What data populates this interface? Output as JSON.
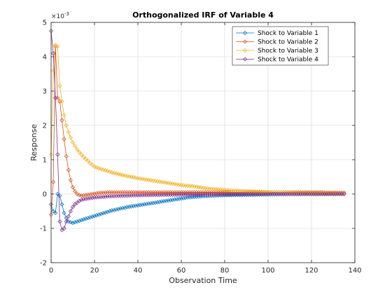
{
  "chart_data": {
    "type": "line",
    "title": "Orthogonalized IRF of Variable 4",
    "xlabel": "Observation Time",
    "ylabel": "Response",
    "exponent_label": "×10",
    "exponent_power": "-3",
    "xlim": [
      0,
      140
    ],
    "ylim": [
      -2,
      5
    ],
    "xticks": [
      0,
      20,
      40,
      60,
      80,
      100,
      120,
      140
    ],
    "yticks": [
      -2,
      -1,
      0,
      1,
      2,
      3,
      4,
      5
    ],
    "grid": true,
    "legend_position": "top-right",
    "x_start": 0,
    "x_end": 135,
    "series": [
      {
        "name": "Shock to Variable 1",
        "color": "#0072BD",
        "values": [
          -0.3,
          -0.5,
          -0.55,
          0.0,
          -0.05,
          -0.3,
          -0.55,
          -0.7,
          -0.8,
          -0.82,
          -0.84,
          -0.82,
          -0.8,
          -0.78,
          -0.76,
          -0.74,
          -0.72,
          -0.7,
          -0.68,
          -0.66,
          -0.64,
          -0.62,
          -0.6,
          -0.58,
          -0.56,
          -0.54,
          -0.52,
          -0.5,
          -0.48,
          -0.47,
          -0.45,
          -0.44,
          -0.42,
          -0.41,
          -0.4,
          -0.38,
          -0.37,
          -0.36,
          -0.35,
          -0.34,
          -0.33,
          -0.32,
          -0.31,
          -0.3,
          -0.29,
          -0.28,
          -0.27,
          -0.26,
          -0.25,
          -0.24,
          -0.23,
          -0.22,
          -0.21,
          -0.2,
          -0.19,
          -0.18,
          -0.17,
          -0.16,
          -0.15,
          -0.14,
          -0.13,
          -0.12,
          -0.11,
          -0.1,
          -0.095,
          -0.09,
          -0.085,
          -0.08,
          -0.075,
          -0.07,
          -0.065,
          -0.06,
          -0.057,
          -0.054,
          -0.051,
          -0.048,
          -0.045,
          -0.042,
          -0.04,
          -0.038,
          -0.036,
          -0.034,
          -0.032,
          -0.03,
          -0.029,
          -0.028,
          -0.027,
          -0.026,
          -0.025,
          -0.024,
          -0.023,
          -0.022,
          -0.021,
          -0.02,
          -0.019,
          -0.018,
          -0.017,
          -0.016,
          -0.015,
          -0.014,
          -0.013,
          -0.012,
          -0.011,
          -0.01,
          -0.01,
          -0.009,
          -0.009,
          -0.008,
          -0.008,
          -0.007,
          -0.007,
          -0.006,
          -0.006,
          -0.005,
          -0.005,
          -0.005,
          -0.004,
          -0.004,
          -0.004,
          -0.003,
          -0.003,
          -0.003,
          -0.003,
          -0.002,
          -0.002,
          -0.002,
          -0.002,
          -0.002,
          -0.001,
          -0.001,
          -0.001,
          -0.001,
          -0.001,
          -0.001,
          -0.001,
          0.0
        ]
      },
      {
        "name": "Shock to Variable 2",
        "color": "#D95319",
        "values": [
          -0.6,
          0.35,
          4.3,
          2.8,
          2.7,
          2.15,
          1.6,
          1.1,
          0.7,
          0.4,
          0.2,
          0.08,
          0.0,
          -0.03,
          -0.05,
          -0.04,
          -0.03,
          -0.02,
          -0.01,
          0.0,
          0.01,
          0.02,
          0.03,
          0.035,
          0.04,
          0.045,
          0.05,
          0.05,
          0.05,
          0.05,
          0.05,
          0.05,
          0.05,
          0.05,
          0.05,
          0.05,
          0.05,
          0.05,
          0.05,
          0.05,
          0.05,
          0.05,
          0.05,
          0.05,
          0.05,
          0.05,
          0.05,
          0.05,
          0.05,
          0.05,
          0.05,
          0.05,
          0.05,
          0.05,
          0.05,
          0.05,
          0.05,
          0.05,
          0.05,
          0.05,
          0.05,
          0.05,
          0.05,
          0.05,
          0.05,
          0.05,
          0.05,
          0.05,
          0.05,
          0.05,
          0.05,
          0.05,
          0.05,
          0.05,
          0.05,
          0.05,
          0.05,
          0.05,
          0.05,
          0.05,
          0.05,
          0.05,
          0.05,
          0.05,
          0.05,
          0.05,
          0.05,
          0.05,
          0.05,
          0.05,
          0.05,
          0.05,
          0.05,
          0.05,
          0.05,
          0.05,
          0.05,
          0.05,
          0.05,
          0.05,
          0.05,
          0.05,
          0.05,
          0.05,
          0.05,
          0.05,
          0.05,
          0.05,
          0.05,
          0.05,
          0.05,
          0.05,
          0.05,
          0.05,
          0.05,
          0.05,
          0.05,
          0.05,
          0.05,
          0.05,
          0.05,
          0.05,
          0.05,
          0.05,
          0.05,
          0.05,
          0.04,
          0.04,
          0.04,
          0.04,
          0.04,
          0.04,
          0.04,
          0.04,
          0.04,
          0.04
        ]
      },
      {
        "name": "Shock to Variable 3",
        "color": "#EDB120",
        "values": [
          1.15,
          3.6,
          4.35,
          4.3,
          3.15,
          2.7,
          2.3,
          2.0,
          1.8,
          1.65,
          1.5,
          1.4,
          1.3,
          1.22,
          1.15,
          1.08,
          1.02,
          0.96,
          0.9,
          0.85,
          0.8,
          0.77,
          0.75,
          0.73,
          0.71,
          0.69,
          0.67,
          0.65,
          0.63,
          0.61,
          0.6,
          0.58,
          0.57,
          0.55,
          0.54,
          0.52,
          0.51,
          0.5,
          0.49,
          0.47,
          0.46,
          0.45,
          0.44,
          0.43,
          0.42,
          0.41,
          0.4,
          0.39,
          0.38,
          0.37,
          0.36,
          0.35,
          0.34,
          0.33,
          0.32,
          0.31,
          0.3,
          0.29,
          0.28,
          0.27,
          0.26,
          0.25,
          0.245,
          0.24,
          0.235,
          0.23,
          0.22,
          0.21,
          0.2,
          0.19,
          0.18,
          0.17,
          0.16,
          0.155,
          0.15,
          0.145,
          0.14,
          0.135,
          0.13,
          0.125,
          0.12,
          0.115,
          0.11,
          0.105,
          0.1,
          0.097,
          0.094,
          0.091,
          0.088,
          0.085,
          0.082,
          0.079,
          0.076,
          0.073,
          0.07,
          0.068,
          0.066,
          0.064,
          0.062,
          0.06,
          0.058,
          0.056,
          0.054,
          0.052,
          0.05,
          0.048,
          0.046,
          0.044,
          0.042,
          0.04,
          0.038,
          0.036,
          0.034,
          0.032,
          0.03,
          0.029,
          0.028,
          0.027,
          0.026,
          0.025,
          0.024,
          0.023,
          0.022,
          0.021,
          0.02,
          0.019,
          0.018,
          0.017,
          0.016,
          0.015,
          0.014,
          0.013,
          0.012,
          0.011,
          0.01,
          0.01
        ]
      },
      {
        "name": "Shock to Variable 4",
        "color": "#7E2F8E",
        "values": [
          4.75,
          4.1,
          2.8,
          1.15,
          -0.8,
          -1.05,
          -1.0,
          -0.8,
          -0.65,
          -0.5,
          -0.38,
          -0.3,
          -0.25,
          -0.2,
          -0.17,
          -0.15,
          -0.14,
          -0.13,
          -0.12,
          -0.11,
          -0.1,
          -0.095,
          -0.09,
          -0.085,
          -0.08,
          -0.075,
          -0.07,
          -0.067,
          -0.064,
          -0.061,
          -0.058,
          -0.055,
          -0.052,
          -0.05,
          -0.048,
          -0.046,
          -0.044,
          -0.042,
          -0.04,
          -0.038,
          -0.036,
          -0.034,
          -0.033,
          -0.032,
          -0.031,
          -0.03,
          -0.029,
          -0.028,
          -0.027,
          -0.026,
          -0.025,
          -0.024,
          -0.023,
          -0.022,
          -0.021,
          -0.02,
          -0.02,
          -0.019,
          -0.019,
          -0.018,
          -0.018,
          -0.017,
          -0.017,
          -0.016,
          -0.016,
          -0.015,
          -0.015,
          -0.014,
          -0.014,
          -0.013,
          -0.013,
          -0.012,
          -0.012,
          -0.011,
          -0.011,
          -0.01,
          -0.01,
          -0.01,
          -0.009,
          -0.009,
          -0.009,
          -0.008,
          -0.008,
          -0.008,
          -0.007,
          -0.007,
          -0.007,
          -0.006,
          -0.006,
          -0.006,
          -0.006,
          -0.005,
          -0.005,
          -0.005,
          -0.005,
          -0.004,
          -0.004,
          -0.004,
          -0.004,
          -0.004,
          -0.003,
          -0.003,
          -0.003,
          -0.003,
          -0.003,
          -0.003,
          -0.002,
          -0.002,
          -0.002,
          -0.002,
          -0.002,
          -0.002,
          -0.002,
          -0.002,
          -0.001,
          -0.001,
          -0.001,
          -0.001,
          -0.001,
          -0.001,
          -0.001,
          -0.001,
          -0.001,
          -0.001,
          -0.001,
          -0.001,
          -0.001,
          -0.001,
          0.0,
          0.0,
          0.0,
          0.0,
          0.0,
          0.0,
          0.0,
          0.0
        ]
      }
    ]
  }
}
